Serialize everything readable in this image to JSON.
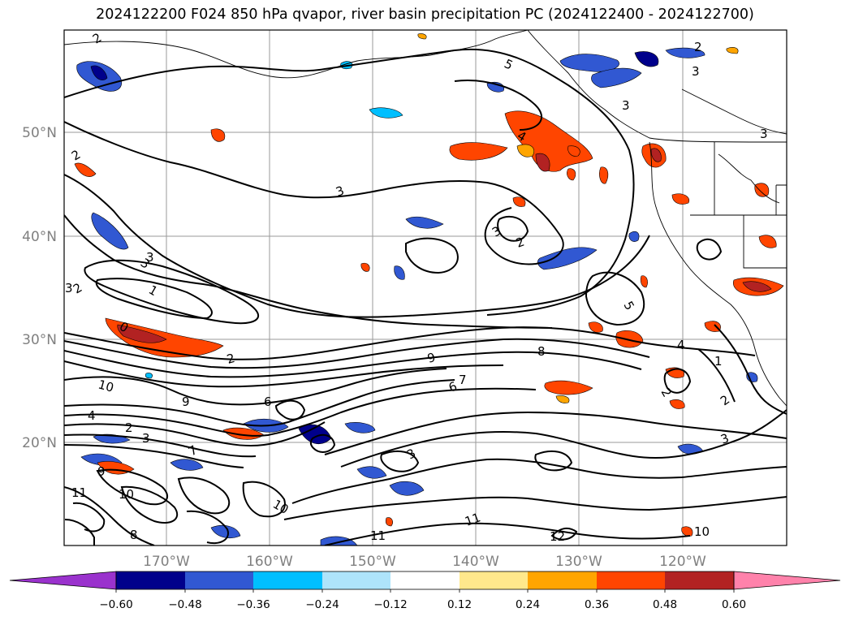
{
  "title": "2024122200 F024 850 hPa qvapor, river basin precipitation PC (2024122400 - 2024122700)",
  "lat_labels": [
    "50°N",
    "40°N",
    "30°N",
    "20°N"
  ],
  "lon_labels": [
    "170°W",
    "160°W",
    "150°W",
    "140°W",
    "130°W",
    "120°W"
  ],
  "colorbar": {
    "ticks": [
      "−0.60",
      "−0.48",
      "−0.36",
      "−0.24",
      "−0.12",
      "0.12",
      "0.24",
      "0.36",
      "0.48",
      "0.60"
    ],
    "colors": [
      "#9a32cd",
      "#00008b",
      "#3158d2",
      "#00bfff",
      "#aee4fb",
      "#ffffff",
      "#ffe88c",
      "#ffa500",
      "#ff4500",
      "#b22222",
      "#ff82ab"
    ]
  },
  "contour_labels": [
    "2",
    "5",
    "2",
    "3",
    "3",
    "2",
    "2",
    "3",
    "4",
    "3",
    "3",
    "3",
    "2",
    "3",
    "1",
    "0",
    "2",
    "10",
    "9",
    "4",
    "2",
    "3",
    "5",
    "9",
    "6",
    "7",
    "8",
    "6",
    "7",
    "4",
    "2",
    "3",
    "3",
    "2",
    "1",
    "9",
    "10",
    "8",
    "10",
    "11",
    "11",
    "11",
    "12",
    "10",
    "3"
  ]
}
